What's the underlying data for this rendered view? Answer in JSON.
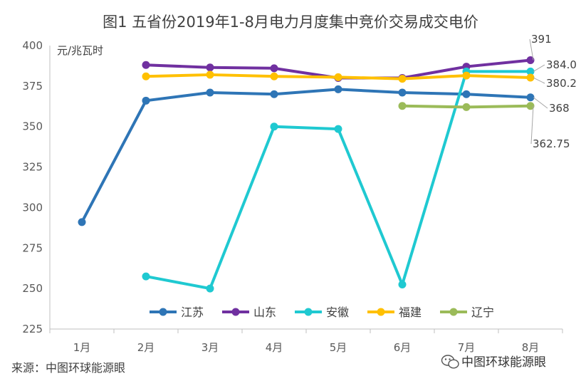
{
  "chart_data": {
    "type": "line",
    "title": "图1  五省份2019年1-8月电力月度集中竞价交易成交电价",
    "ylabel": "元/兆瓦时",
    "xlabel": "",
    "categories": [
      "1月",
      "2月",
      "3月",
      "4月",
      "5月",
      "6月",
      "7月",
      "8月"
    ],
    "ylim": [
      225,
      400
    ],
    "yticks": [
      225,
      250,
      275,
      300,
      325,
      350,
      375,
      400
    ],
    "grid": false,
    "legend": "bottom",
    "series": [
      {
        "name": "江苏",
        "color": "#2E75B6",
        "values": [
          291,
          366,
          371,
          370,
          373,
          371,
          370,
          368
        ]
      },
      {
        "name": "山东",
        "color": "#7030A0",
        "values": [
          null,
          388,
          386.5,
          386,
          380,
          380,
          387,
          391
        ]
      },
      {
        "name": "安徽",
        "color": "#1FC9D1",
        "values": [
          null,
          257.5,
          250,
          350,
          348.5,
          252.5,
          384,
          384
        ]
      },
      {
        "name": "福建",
        "color": "#FFC000",
        "values": [
          null,
          381,
          382,
          381,
          380.5,
          379.5,
          381.5,
          380.2
        ]
      },
      {
        "name": "辽宁",
        "color": "#9BBB59",
        "values": [
          null,
          null,
          null,
          null,
          null,
          362.75,
          362,
          362.75
        ]
      }
    ],
    "annotations": [
      {
        "text": "391",
        "series": "山东",
        "index": 7
      },
      {
        "text": "384.0",
        "series": "安徽",
        "index": 7
      },
      {
        "text": "380.2",
        "series": "福建",
        "index": 7
      },
      {
        "text": "368",
        "series": "江苏",
        "index": 7
      },
      {
        "text": "362.75",
        "series": "辽宁",
        "index": 7
      }
    ]
  },
  "footer": {
    "source": "来源：中图环球能源眼",
    "watermark": "中图环球能源眼"
  }
}
